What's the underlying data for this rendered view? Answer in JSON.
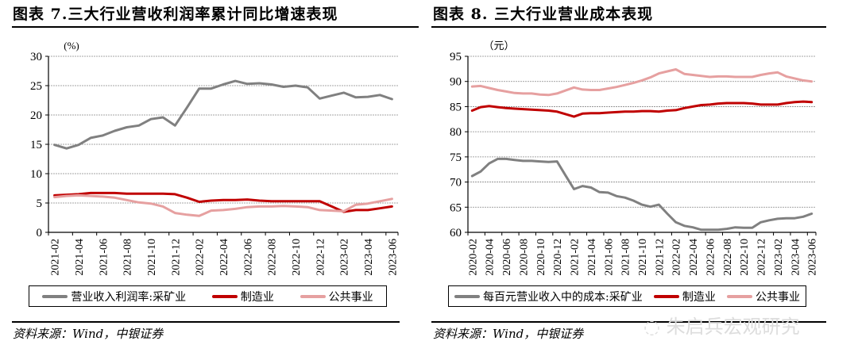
{
  "chart_data": [
    {
      "type": "line",
      "title": "图表 7.三大行业营收利润率累计同比增速表现",
      "unit_label": "(%)",
      "ylim": [
        0,
        30
      ],
      "yticks": [
        0,
        5,
        10,
        15,
        20,
        25,
        30
      ],
      "grid": true,
      "legend_placement": "bottom",
      "categories": [
        "2021-02",
        "2021-03",
        "2021-04",
        "2021-05",
        "2021-06",
        "2021-07",
        "2021-08",
        "2021-09",
        "2021-10",
        "2021-11",
        "2021-12",
        "2022-01",
        "2022-02",
        "2022-03",
        "2022-04",
        "2022-05",
        "2022-06",
        "2022-07",
        "2022-08",
        "2022-09",
        "2022-10",
        "2022-11",
        "2022-12",
        "2023-01",
        "2023-02",
        "2023-03",
        "2023-04",
        "2023-05",
        "2023-06"
      ],
      "tick_labels": [
        "2021-02",
        "2021-04",
        "2021-06",
        "2021-08",
        "2021-10",
        "2021-12",
        "2022-02",
        "2022-04",
        "2022-06",
        "2022-08",
        "2022-10",
        "2022-12",
        "2023-02",
        "2023-04",
        "2023-06"
      ],
      "series": [
        {
          "name": "营业收入利润率:采矿业",
          "color": "#808080",
          "values": [
            14.9,
            14.3,
            14.9,
            16.1,
            16.5,
            17.3,
            17.9,
            18.2,
            19.3,
            19.6,
            18.2,
            21.3,
            24.5,
            24.5,
            25.2,
            25.8,
            25.3,
            25.4,
            25.2,
            24.8,
            25.0,
            24.7,
            22.8,
            23.3,
            23.8,
            23.0,
            23.1,
            23.4,
            22.7
          ]
        },
        {
          "name": "制造业",
          "color": "#c00000",
          "values": [
            6.3,
            6.4,
            6.5,
            6.7,
            6.7,
            6.7,
            6.6,
            6.6,
            6.6,
            6.6,
            6.5,
            5.9,
            5.2,
            5.4,
            5.5,
            5.5,
            5.6,
            5.4,
            5.3,
            5.3,
            5.3,
            5.3,
            5.3,
            4.4,
            3.5,
            3.8,
            3.8,
            4.1,
            4.4
          ]
        },
        {
          "name": "公共事业",
          "color": "#e6a0a0",
          "values": [
            6.0,
            6.2,
            6.3,
            6.2,
            6.1,
            5.9,
            5.5,
            5.1,
            4.9,
            4.4,
            3.3,
            3.0,
            2.8,
            3.7,
            3.8,
            4.0,
            4.3,
            4.4,
            4.4,
            4.5,
            4.4,
            4.3,
            3.8,
            3.7,
            3.6,
            4.7,
            4.9,
            5.3,
            5.7
          ]
        }
      ],
      "source": "资料来源：Wind，中银证券"
    },
    {
      "type": "line",
      "title": "图表 8. 三大行业营业成本表现",
      "unit_label": "（元）",
      "ylim": [
        60,
        95
      ],
      "yticks": [
        60,
        65,
        70,
        75,
        80,
        85,
        90,
        95
      ],
      "grid": true,
      "legend_placement": "bottom",
      "categories": [
        "2020-02",
        "2020-03",
        "2020-04",
        "2020-05",
        "2020-06",
        "2020-07",
        "2020-08",
        "2020-09",
        "2020-10",
        "2020-11",
        "2020-12",
        "2021-01",
        "2021-02",
        "2021-03",
        "2021-04",
        "2021-05",
        "2021-06",
        "2021-07",
        "2021-08",
        "2021-09",
        "2021-10",
        "2021-11",
        "2021-12",
        "2022-01",
        "2022-02",
        "2022-03",
        "2022-04",
        "2022-05",
        "2022-06",
        "2022-07",
        "2022-08",
        "2022-09",
        "2022-10",
        "2022-11",
        "2022-12",
        "2023-01",
        "2023-02",
        "2023-03",
        "2023-04",
        "2023-05",
        "2023-06"
      ],
      "tick_labels": [
        "2020-02",
        "2020-04",
        "2020-06",
        "2020-08",
        "2020-10",
        "2020-12",
        "2021-02",
        "2021-04",
        "2021-06",
        "2021-08",
        "2021-10",
        "2021-12",
        "2022-02",
        "2022-04",
        "2022-06",
        "2022-08",
        "2022-10",
        "2022-12",
        "2023-02",
        "2023-04",
        "2023-06"
      ],
      "series": [
        {
          "name": "每百元营业收入中的成本:采矿业",
          "color": "#808080",
          "values": [
            71.2,
            72.1,
            73.7,
            74.6,
            74.6,
            74.4,
            74.2,
            74.2,
            74.1,
            74.0,
            74.1,
            71.3,
            68.6,
            69.2,
            68.9,
            68.0,
            67.9,
            67.2,
            66.9,
            66.3,
            65.5,
            65.1,
            65.5,
            63.7,
            62.0,
            61.3,
            61.0,
            60.5,
            60.5,
            60.5,
            60.7,
            61.0,
            60.9,
            60.9,
            62.0,
            62.4,
            62.7,
            62.8,
            62.8,
            63.1,
            63.7
          ]
        },
        {
          "name": "制造业",
          "color": "#c00000",
          "values": [
            84.2,
            84.9,
            85.1,
            84.9,
            84.7,
            84.6,
            84.5,
            84.4,
            84.3,
            84.2,
            84.0,
            83.5,
            83.0,
            83.6,
            83.7,
            83.7,
            83.8,
            83.9,
            84.0,
            84.0,
            84.1,
            84.1,
            84.0,
            84.2,
            84.3,
            84.7,
            85.0,
            85.3,
            85.4,
            85.6,
            85.7,
            85.7,
            85.7,
            85.6,
            85.4,
            85.4,
            85.4,
            85.7,
            85.9,
            86.0,
            85.9
          ]
        },
        {
          "name": "公共事业",
          "color": "#e6a0a0",
          "values": [
            89.0,
            89.1,
            88.7,
            88.3,
            88.0,
            87.7,
            87.6,
            87.6,
            87.4,
            87.3,
            87.6,
            88.2,
            88.8,
            88.4,
            88.3,
            88.3,
            88.6,
            88.9,
            89.3,
            89.7,
            90.2,
            90.8,
            91.6,
            92.0,
            92.4,
            91.5,
            91.3,
            91.1,
            90.9,
            91.0,
            91.0,
            90.9,
            90.9,
            90.9,
            91.3,
            91.6,
            91.8,
            91.0,
            90.6,
            90.2,
            90.0
          ]
        }
      ],
      "source": "资料来源：Wind，中银证券"
    }
  ],
  "watermark": "朱启兵宏观研究"
}
